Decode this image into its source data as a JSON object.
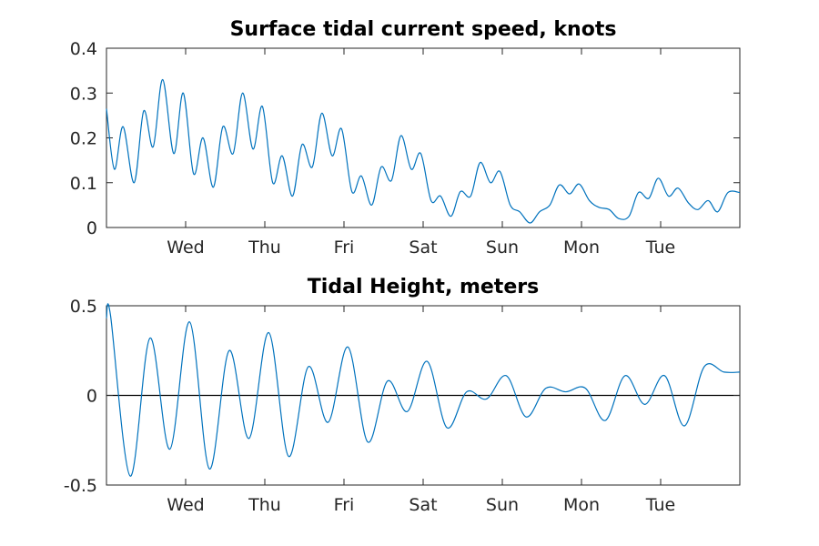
{
  "chart_data": [
    {
      "type": "line",
      "title": "Surface tidal current speed, knots",
      "xlabel": "",
      "ylabel": "",
      "xlim": [
        0,
        8
      ],
      "ylim": [
        0,
        0.4
      ],
      "yticks": [
        "0",
        "0.1",
        "0.2",
        "0.3",
        "0.4"
      ],
      "xticks": [
        {
          "pos": 1,
          "label": "Wed"
        },
        {
          "pos": 2,
          "label": "Thu"
        },
        {
          "pos": 3,
          "label": "Fri"
        },
        {
          "pos": 4,
          "label": "Sat"
        },
        {
          "pos": 5,
          "label": "Sun"
        },
        {
          "pos": 6,
          "label": "Mon"
        },
        {
          "pos": 7,
          "label": "Tue"
        }
      ],
      "grid": false,
      "color": "#0072BD",
      "series": [
        {
          "x": [
            0,
            0.1,
            0.21,
            0.35,
            0.47,
            0.59,
            0.71,
            0.85,
            0.97,
            1.1,
            1.22,
            1.35,
            1.47,
            1.6,
            1.72,
            1.85,
            1.97,
            2.1,
            2.22,
            2.35,
            2.47,
            2.6,
            2.72,
            2.85,
            2.97,
            3.1,
            3.22,
            3.35,
            3.47,
            3.6,
            3.72,
            3.85,
            3.97,
            4.1,
            4.22,
            4.35,
            4.47,
            4.6,
            4.72,
            4.85,
            4.97,
            5.1,
            5.22,
            5.35,
            5.47,
            5.6,
            5.72,
            5.85,
            5.97,
            6.1,
            6.22,
            6.35,
            6.47,
            6.6,
            6.72,
            6.85,
            6.97,
            7.1,
            7.22,
            7.35,
            7.47,
            7.6,
            7.72,
            7.85,
            8
          ],
          "y": [
            0.265,
            0.13,
            0.225,
            0.1,
            0.26,
            0.18,
            0.33,
            0.165,
            0.3,
            0.12,
            0.2,
            0.09,
            0.225,
            0.165,
            0.3,
            0.175,
            0.27,
            0.1,
            0.16,
            0.07,
            0.185,
            0.135,
            0.255,
            0.16,
            0.22,
            0.08,
            0.115,
            0.05,
            0.135,
            0.105,
            0.205,
            0.13,
            0.165,
            0.06,
            0.07,
            0.025,
            0.08,
            0.07,
            0.145,
            0.1,
            0.125,
            0.05,
            0.035,
            0.01,
            0.035,
            0.05,
            0.095,
            0.075,
            0.097,
            0.06,
            0.045,
            0.04,
            0.02,
            0.025,
            0.078,
            0.065,
            0.11,
            0.07,
            0.088,
            0.055,
            0.04,
            0.06,
            0.035,
            0.078,
            0.078
          ]
        }
      ]
    },
    {
      "type": "line",
      "title": "Tidal Height, meters",
      "xlabel": "",
      "ylabel": "",
      "xlim": [
        0,
        8
      ],
      "ylim": [
        -0.5,
        0.5
      ],
      "yticks": [
        "-0.5",
        "0",
        "0.5"
      ],
      "xticks": [
        {
          "pos": 1,
          "label": "Wed"
        },
        {
          "pos": 2,
          "label": "Thu"
        },
        {
          "pos": 3,
          "label": "Fri"
        },
        {
          "pos": 4,
          "label": "Sat"
        },
        {
          "pos": 5,
          "label": "Sun"
        },
        {
          "pos": 6,
          "label": "Mon"
        },
        {
          "pos": 7,
          "label": "Tue"
        }
      ],
      "grid": false,
      "zero_line": true,
      "color": "#0072BD",
      "series": [
        {
          "x": [
            0,
            0.05,
            0.3,
            0.55,
            0.8,
            1.05,
            1.3,
            1.55,
            1.8,
            2.05,
            2.3,
            2.55,
            2.8,
            3.05,
            3.3,
            3.55,
            3.8,
            4.05,
            4.3,
            4.55,
            4.8,
            5.05,
            5.3,
            5.55,
            5.8,
            6.05,
            6.3,
            6.55,
            6.8,
            7.05,
            7.3,
            7.55,
            7.8,
            8
          ],
          "y": [
            0.43,
            0.45,
            -0.45,
            0.32,
            -0.3,
            0.41,
            -0.41,
            0.25,
            -0.24,
            0.35,
            -0.34,
            0.16,
            -0.15,
            0.27,
            -0.26,
            0.08,
            -0.09,
            0.19,
            -0.18,
            0.02,
            -0.02,
            0.11,
            -0.12,
            0.04,
            0.02,
            0.04,
            -0.14,
            0.11,
            -0.05,
            0.11,
            -0.17,
            0.16,
            0.13,
            0.13
          ]
        }
      ]
    }
  ]
}
